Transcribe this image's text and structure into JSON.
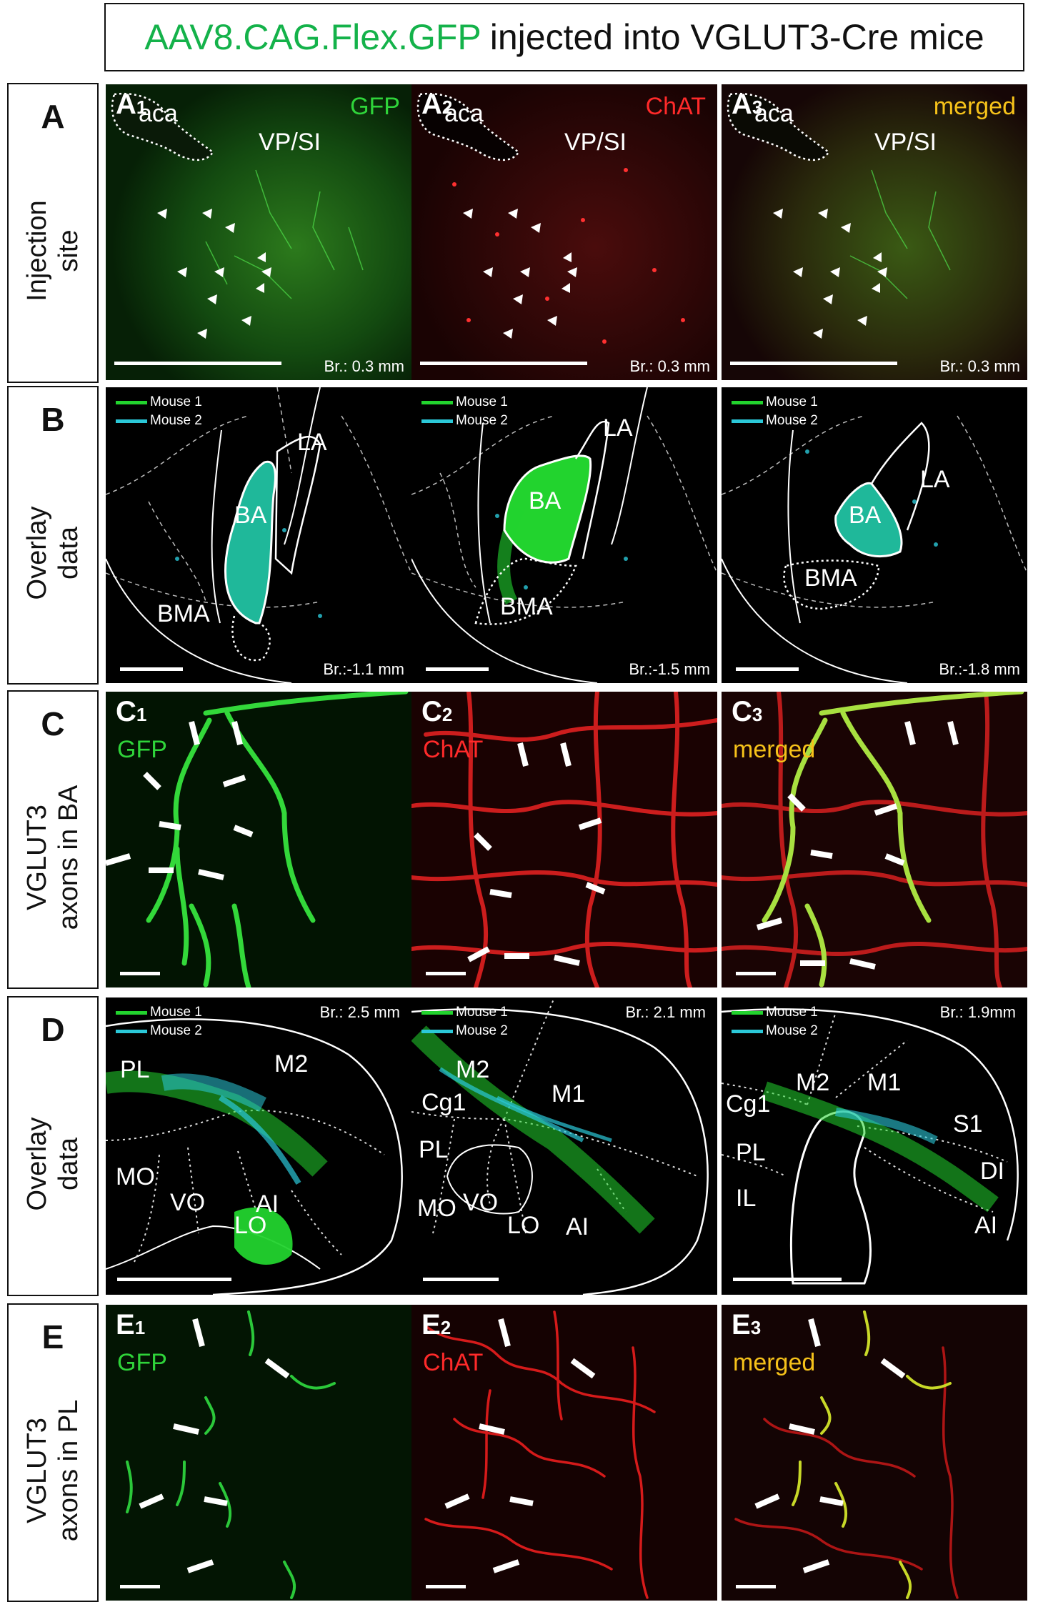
{
  "title": {
    "virus": "AAV8.CAG.Flex.GFP",
    "rest": "injected into VGLUT3-Cre mice"
  },
  "rows": [
    {
      "letter": "A",
      "line1": "Injection",
      "line2": "site"
    },
    {
      "letter": "B",
      "line1": "Overlay",
      "line2": "data"
    },
    {
      "letter": "C",
      "line1": "VGLUT3",
      "line2": "axons in BA"
    },
    {
      "letter": "D",
      "line1": "Overlay",
      "line2": "data"
    },
    {
      "letter": "E",
      "line1": "VGLUT3",
      "line2": "axons in PL"
    }
  ],
  "legend": {
    "mouse1": "Mouse 1",
    "mouse2": "Mouse 2",
    "mouse1_color": "#22d32e",
    "mouse2_color": "#2bc8d8"
  },
  "channels": {
    "gfp": "GFP",
    "chat": "ChAT",
    "merged": "merged"
  },
  "colors": {
    "gfp": "#2fd43a",
    "chat": "#ff2a2a",
    "merged": "#f6c21a"
  },
  "panelA": [
    {
      "letter": "A",
      "sub": "1",
      "channel": "GFP",
      "regions": [
        "aca",
        "VP/SI"
      ],
      "bregma": "Br.: 0.3 mm"
    },
    {
      "letter": "A",
      "sub": "2",
      "channel": "ChAT",
      "regions": [
        "aca",
        "VP/SI"
      ],
      "bregma": "Br.: 0.3 mm"
    },
    {
      "letter": "A",
      "sub": "3",
      "channel": "merged",
      "regions": [
        "aca",
        "VP/SI"
      ],
      "bregma": "Br.: 0.3 mm"
    }
  ],
  "panelB": [
    {
      "regions": [
        "LA",
        "BA",
        "BMA"
      ],
      "bregma": "Br.:-1.1 mm"
    },
    {
      "regions": [
        "LA",
        "BA",
        "BMA"
      ],
      "bregma": "Br.:-1.5 mm"
    },
    {
      "regions": [
        "LA",
        "BA",
        "BMA"
      ],
      "bregma": "Br.:-1.8 mm"
    }
  ],
  "panelC": [
    {
      "letter": "C",
      "sub": "1",
      "channel": "GFP"
    },
    {
      "letter": "C",
      "sub": "2",
      "channel": "ChAT"
    },
    {
      "letter": "C",
      "sub": "3",
      "channel": "merged"
    }
  ],
  "panelD": [
    {
      "bregma": "Br.: 2.5 mm",
      "regions": [
        "PL",
        "M2",
        "MO",
        "VO",
        "LO",
        "AI"
      ]
    },
    {
      "bregma": "Br.: 2.1 mm",
      "regions": [
        "M2",
        "M1",
        "Cg1",
        "PL",
        "MO",
        "VO",
        "LO",
        "AI"
      ]
    },
    {
      "bregma": "Br.: 1.9mm",
      "regions": [
        "M2",
        "M1",
        "Cg1",
        "S1",
        "PL",
        "IL",
        "DI",
        "AI"
      ]
    }
  ],
  "panelE": [
    {
      "letter": "E",
      "sub": "1",
      "channel": "GFP"
    },
    {
      "letter": "E",
      "sub": "2",
      "channel": "ChAT"
    },
    {
      "letter": "E",
      "sub": "3",
      "channel": "merged"
    }
  ]
}
